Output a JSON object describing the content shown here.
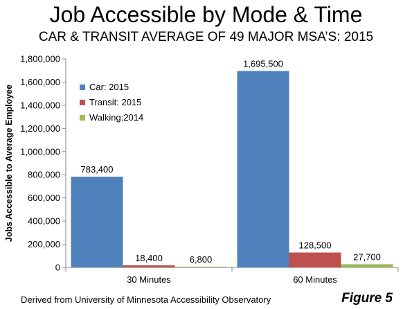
{
  "title": "Job Accessible by Mode & Time",
  "subtitle": "CAR & TRANSIT AVERAGE OF 49 MAJOR MSA’S: 2015",
  "footer": {
    "source": "Derived from University of Minnesota Accessibility Observatory",
    "figure": "Figure 5"
  },
  "chart_data": {
    "type": "bar",
    "categories": [
      "30 Minutes",
      "60 Minutes"
    ],
    "series": [
      {
        "name": "Car: 2015",
        "color": "#4F81BD",
        "values": [
          783400,
          1695500
        ],
        "labels": [
          "783,400",
          "1,695,500"
        ]
      },
      {
        "name": "Transit: 2015",
        "color": "#C0504D",
        "values": [
          18400,
          128500
        ],
        "labels": [
          "18,400",
          "128,500"
        ]
      },
      {
        "name": "Walking:2014",
        "color": "#9BBB59",
        "values": [
          6800,
          27700
        ],
        "labels": [
          "6,800",
          "27,700"
        ]
      }
    ],
    "ylabel": "Jobs Accessible to Average Employee",
    "xlabel": "",
    "ylim": [
      0,
      1800000
    ],
    "yticks": [
      0,
      200000,
      400000,
      600000,
      800000,
      1000000,
      1200000,
      1400000,
      1600000,
      1800000
    ],
    "ytick_labels": [
      "0",
      "200,000",
      "400,000",
      "600,000",
      "800,000",
      "1,000,000",
      "1,200,000",
      "1,400,000",
      "1,600,000",
      "1,800,000"
    ],
    "grid": false,
    "legend_position": "top-left inside"
  }
}
